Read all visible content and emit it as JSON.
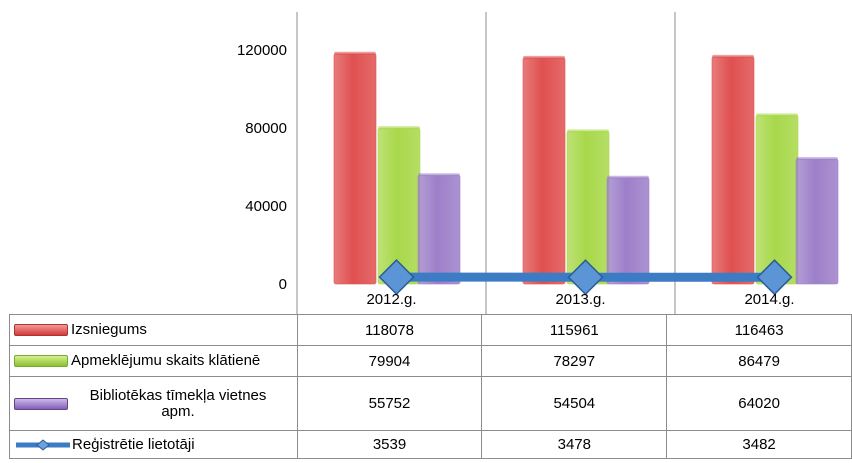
{
  "chart_data": {
    "type": "bar",
    "categories": [
      "2012.g.",
      "2013.g.",
      "2014.g."
    ],
    "series": [
      {
        "name": "Izsniegums",
        "kind": "bar",
        "color": "#e05050",
        "values": [
          118078,
          115961,
          116463
        ]
      },
      {
        "name": "Apmeklējumu skaits klātienē",
        "kind": "bar",
        "color": "#a8d84a",
        "values": [
          79904,
          78297,
          86479
        ]
      },
      {
        "name": "Bibliotēkas tīmekļa vietnes apm.",
        "kind": "bar",
        "color": "#9d7fc9",
        "values": [
          55752,
          54504,
          64020
        ]
      },
      {
        "name": "Reģistrētie lietotāji",
        "kind": "line",
        "color": "#3b7cc4",
        "values": [
          3539,
          3478,
          3482
        ]
      }
    ],
    "yticks": [
      "0",
      "40000",
      "80000",
      "120000"
    ],
    "ylim": [
      0,
      120000
    ],
    "grid": "vertical",
    "legend": "data-table"
  }
}
